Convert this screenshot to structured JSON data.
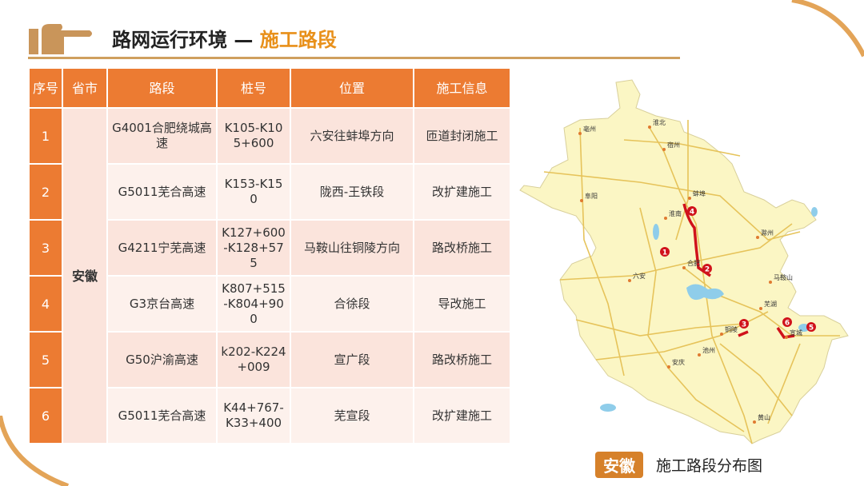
{
  "header": {
    "title": "路网运行环境 —",
    "highlight": "施工路段"
  },
  "table": {
    "headers": [
      "序号",
      "省市",
      "路段",
      "桩号",
      "位置",
      "施工信息"
    ],
    "province": "安徽",
    "rows": [
      {
        "no": "1",
        "road": "G4001合肥绕城高速",
        "stake": "K105-K105+600",
        "location": "六安往蚌埠方向",
        "info": "匝道封闭施工"
      },
      {
        "no": "2",
        "road": "G5011芜合高速",
        "stake": "K153-K150",
        "location": "陇西-王铁段",
        "info": "改扩建施工"
      },
      {
        "no": "3",
        "road": "G4211宁芜高速",
        "stake": "K127+600-K128+575",
        "location": "马鞍山往铜陵方向",
        "info": "路改桥施工"
      },
      {
        "no": "4",
        "road": "G3京台高速",
        "stake": "K807+515-K804+900",
        "location": "合徐段",
        "info": "导改施工"
      },
      {
        "no": "5",
        "road": "G50沪渝高速",
        "stake": "k202-K224+009",
        "location": "宣广段",
        "info": "路改桥施工"
      },
      {
        "no": "6",
        "road": "G5011芜合高速",
        "stake": "K44+767-K33+400",
        "location": "芜宣段",
        "info": "改扩建施工"
      }
    ]
  },
  "map": {
    "cities": [
      "亳州",
      "淮北",
      "宿州",
      "阜阳",
      "蚌埠",
      "淮南",
      "滁州",
      "合肥",
      "六安",
      "马鞍山",
      "芜湖",
      "铜陵",
      "宣城",
      "池州",
      "安庆",
      "黄山"
    ],
    "markers": [
      "1",
      "2",
      "3",
      "4",
      "5",
      "6"
    ],
    "colors": {
      "land": "#fbf6c4",
      "road": "#e6c35a",
      "construction": "#d0121b",
      "water": "#8fcdea"
    }
  },
  "caption": {
    "tag": "安徽",
    "text": "施工路段分布图"
  }
}
